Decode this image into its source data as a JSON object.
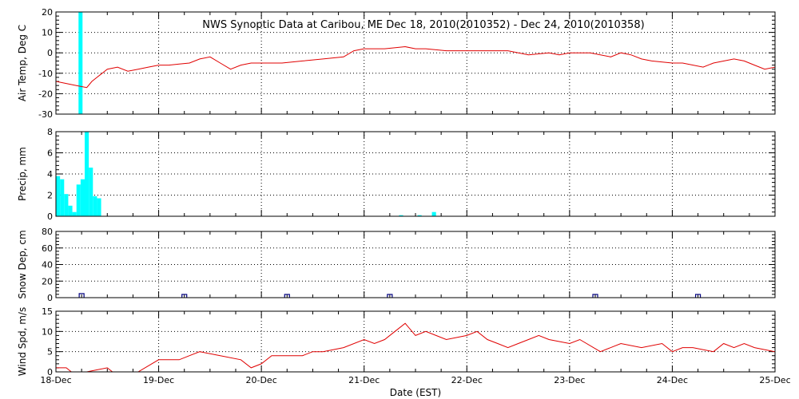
{
  "title": "NWS Synoptic Data at Caribou, ME    Dec 18, 2010(2010352) - Dec 24, 2010(2010358)",
  "xlabel": "Date (EST)",
  "colors": {
    "precip": "#00ffff",
    "temp": "#e00000",
    "wind": "#e00000",
    "snow": "#000080",
    "grid": "#000000"
  },
  "chart_data": [
    {
      "type": "line",
      "panel": "air-temp",
      "ylabel": "Air Temp, Deg C",
      "ylim": [
        -30,
        20
      ],
      "yticks": [
        "-30",
        "-20",
        "-10",
        "0",
        "10",
        "20"
      ],
      "x_unit": "days after 18-Dec 00:00",
      "series": [
        {
          "x": [
            0,
            0.1,
            0.2,
            0.3,
            0.35,
            0.4,
            0.5,
            0.6,
            0.7,
            0.8,
            0.9,
            1.0,
            1.1,
            1.2,
            1.3,
            1.4,
            1.5,
            1.6,
            1.7,
            1.8,
            1.9,
            2.0,
            2.2,
            2.4,
            2.6,
            2.8,
            2.9,
            3.0,
            3.2,
            3.4,
            3.5,
            3.6,
            3.8,
            4.0,
            4.2,
            4.4,
            4.6,
            4.8,
            4.9,
            5.0,
            5.2,
            5.4,
            5.5,
            5.6,
            5.7,
            5.8,
            6.0,
            6.1,
            6.3,
            6.4,
            6.6,
            6.7,
            6.8,
            6.9,
            7.0
          ],
          "y": [
            -14,
            -15,
            -16,
            -17,
            -14,
            -12,
            -8,
            -7,
            -9,
            -8,
            -7,
            -6,
            -6,
            -5.5,
            -5,
            -3,
            -2,
            -5,
            -8,
            -6,
            -5,
            -5,
            -5,
            -4,
            -3,
            -2,
            1,
            2,
            2,
            3,
            2,
            2,
            1,
            1,
            1,
            1,
            -1,
            0,
            -1,
            0,
            0,
            -2,
            0,
            -1,
            -3,
            -4,
            -5,
            -5,
            -7,
            -5,
            -3,
            -4,
            -6,
            -8,
            -7
          ]
        }
      ],
      "bars": {
        "name": "Air temperature panel precip overflow",
        "x": [
          0.22
        ],
        "values": [
          20
        ]
      }
    },
    {
      "type": "bar",
      "panel": "precip",
      "ylabel": "Precip, mm",
      "ylim": [
        0,
        8
      ],
      "yticks": [
        "0",
        "2",
        "4",
        "6",
        "8"
      ],
      "x_unit": "days after 18-Dec 00:00",
      "bin_width": 0.04,
      "x": [
        0.0,
        0.04,
        0.08,
        0.12,
        0.16,
        0.2,
        0.24,
        0.28,
        0.32,
        0.36,
        0.4,
        0.44,
        0.48,
        0.52,
        0.56,
        3.34,
        3.52,
        3.66
      ],
      "values": [
        3.8,
        3.5,
        2.1,
        1.0,
        0.4,
        3.0,
        3.5,
        60,
        4.6,
        1.9,
        1.7,
        0,
        0,
        0,
        0,
        0.1,
        0.1,
        0.4
      ]
    },
    {
      "type": "scatter",
      "panel": "snow-depth",
      "ylabel": "Snow Dep, cm",
      "ylim": [
        0,
        80
      ],
      "yticks": [
        "0",
        "20",
        "40",
        "60",
        "80"
      ],
      "x_unit": "days after 18-Dec 00:00",
      "x": [
        0.25,
        1.25,
        2.25,
        3.25,
        5.25,
        6.25
      ],
      "values": [
        2,
        1,
        1,
        1,
        1,
        1
      ]
    },
    {
      "type": "line",
      "panel": "wind-speed",
      "ylabel": "Wind Spd, m/s",
      "ylim": [
        0,
        15
      ],
      "yticks": [
        "0",
        "5",
        "10",
        "15"
      ],
      "x_unit": "days after 18-Dec 00:00",
      "series": [
        {
          "x": [
            0,
            0.1,
            0.15,
            0.2,
            0.3,
            0.5,
            0.55,
            0.6,
            0.8,
            1.0,
            1.05,
            1.2,
            1.3,
            1.4,
            1.6,
            1.8,
            1.9,
            2.0,
            2.1,
            2.2,
            2.4,
            2.5,
            2.6,
            2.8,
            3.0,
            3.1,
            3.2,
            3.3,
            3.4,
            3.5,
            3.6,
            3.7,
            3.8,
            4.0,
            4.1,
            4.2,
            4.3,
            4.4,
            4.5,
            4.6,
            4.7,
            4.8,
            5.0,
            5.1,
            5.3,
            5.5,
            5.7,
            5.9,
            6.0,
            6.1,
            6.2,
            6.4,
            6.5,
            6.6,
            6.7,
            6.8,
            7.0
          ],
          "y": [
            1,
            1,
            0,
            0,
            0,
            1,
            0,
            0,
            0,
            3,
            3,
            3,
            4,
            5,
            4,
            3,
            1,
            2,
            4,
            4,
            4,
            5,
            5,
            6,
            8,
            7,
            8,
            10,
            12,
            9,
            10,
            9,
            8,
            9,
            10,
            8,
            7,
            6,
            7,
            8,
            9,
            8,
            7,
            8,
            5,
            7,
            6,
            7,
            5,
            6,
            6,
            5,
            7,
            6,
            7,
            6,
            5
          ]
        }
      ]
    }
  ],
  "xticks": [
    "18-Dec",
    "19-Dec",
    "20-Dec",
    "21-Dec",
    "22-Dec",
    "23-Dec",
    "24-Dec",
    "25-Dec"
  ]
}
